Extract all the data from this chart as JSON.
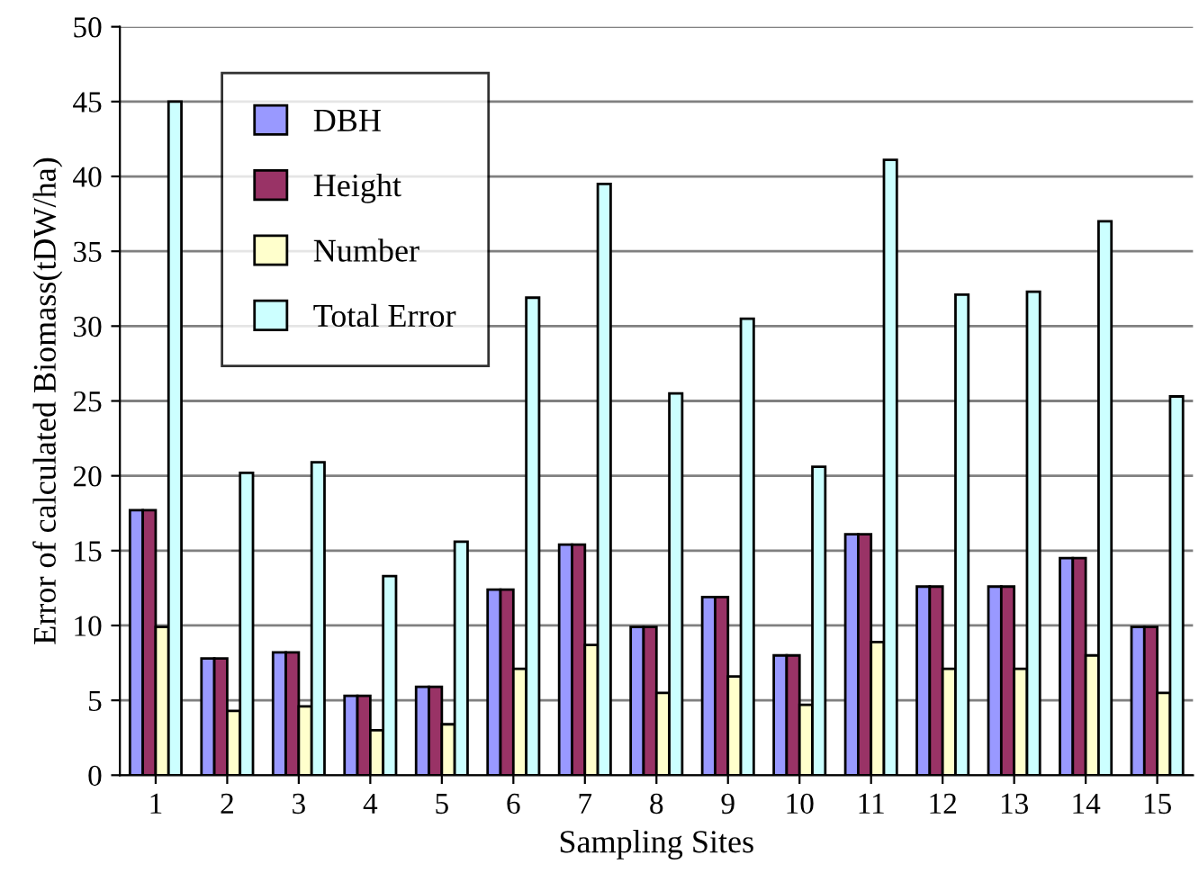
{
  "chart_data": {
    "type": "bar",
    "xlabel": "Sampling Sites",
    "ylabel": "Error of calculated Biomass(tDW/ha)",
    "categories": [
      "1",
      "2",
      "3",
      "4",
      "5",
      "6",
      "7",
      "8",
      "9",
      "10",
      "11",
      "12",
      "13",
      "14",
      "15"
    ],
    "series": [
      {
        "name": "DBH",
        "color": "#9999ff",
        "values": [
          17.7,
          7.8,
          8.2,
          5.3,
          5.9,
          12.4,
          15.4,
          9.9,
          11.9,
          8.0,
          16.1,
          12.6,
          12.6,
          14.5,
          9.9
        ]
      },
      {
        "name": "Height",
        "color": "#993366",
        "values": [
          17.7,
          7.8,
          8.2,
          5.3,
          5.9,
          12.4,
          15.4,
          9.9,
          11.9,
          8.0,
          16.1,
          12.6,
          12.6,
          14.5,
          9.9
        ]
      },
      {
        "name": "Number",
        "color": "#ffffcc",
        "values": [
          9.9,
          4.3,
          4.6,
          3.0,
          3.4,
          7.1,
          8.7,
          5.5,
          6.6,
          4.7,
          8.9,
          7.1,
          7.1,
          8.0,
          5.5
        ]
      },
      {
        "name": "Total Error",
        "color": "#ccffff",
        "values": [
          45.0,
          20.2,
          20.9,
          13.3,
          15.6,
          31.9,
          39.5,
          25.5,
          30.5,
          20.6,
          41.1,
          32.1,
          32.3,
          37.0,
          25.3
        ]
      }
    ],
    "ylim": [
      0,
      50
    ],
    "yticks": [
      0,
      5,
      10,
      15,
      20,
      25,
      30,
      35,
      40,
      45,
      50
    ],
    "grid": "y",
    "legend": "top left"
  }
}
